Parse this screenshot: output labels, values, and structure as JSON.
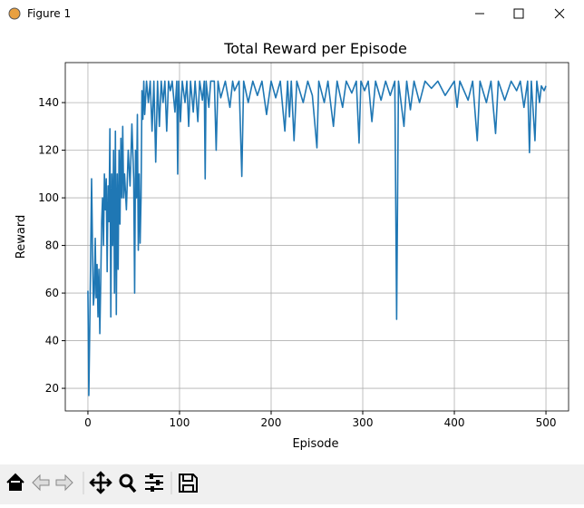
{
  "window": {
    "title": "Figure 1"
  },
  "chart_data": {
    "type": "line",
    "title": "Total Reward per Episode",
    "x_label": "Episode",
    "y_label": "Reward",
    "color": "#1f77b4",
    "grid": true,
    "xlim": [
      -24.7,
      524.7
    ],
    "ylim": [
      10.5,
      156.8
    ],
    "xticks": [
      0,
      100,
      200,
      300,
      400,
      500
    ],
    "yticks": [
      20,
      40,
      60,
      80,
      100,
      120,
      140
    ],
    "x": [
      0,
      1,
      2,
      3,
      4,
      5,
      6,
      7,
      8,
      9,
      10,
      11,
      12,
      13,
      14,
      15,
      16,
      17,
      18,
      19,
      20,
      21,
      22,
      23,
      24,
      25,
      26,
      27,
      28,
      29,
      30,
      31,
      32,
      33,
      34,
      35,
      36,
      37,
      38,
      39,
      40,
      42,
      44,
      46,
      48,
      50,
      51,
      52,
      53,
      54,
      55,
      56,
      57,
      58,
      59,
      60,
      61,
      62,
      64,
      66,
      68,
      70,
      72,
      74,
      76,
      78,
      80,
      82,
      84,
      86,
      88,
      90,
      92,
      95,
      97,
      98,
      99,
      101,
      103,
      106,
      108,
      110,
      112,
      115,
      117,
      120,
      122,
      125,
      127,
      128,
      129,
      132,
      134,
      138,
      140,
      142,
      145,
      150,
      155,
      158,
      160,
      165,
      168,
      170,
      175,
      180,
      185,
      190,
      195,
      200,
      205,
      210,
      215,
      218,
      220,
      222,
      225,
      228,
      235,
      240,
      245,
      250,
      252,
      258,
      262,
      268,
      272,
      278,
      282,
      288,
      293,
      296,
      298,
      302,
      306,
      310,
      314,
      320,
      325,
      330,
      335,
      337,
      339,
      345,
      348,
      352,
      356,
      362,
      368,
      375,
      382,
      390,
      400,
      403,
      406,
      415,
      420,
      425,
      428,
      435,
      440,
      445,
      448,
      455,
      462,
      468,
      472,
      476,
      480,
      482,
      484,
      488,
      490,
      493,
      495,
      498,
      500
    ],
    "values": [
      61,
      17,
      45,
      75,
      108,
      80,
      55,
      60,
      83,
      58,
      72,
      50,
      70,
      43,
      65,
      90,
      100,
      80,
      110,
      95,
      108,
      69,
      105,
      90,
      129,
      50,
      110,
      80,
      120,
      60,
      128,
      51,
      110,
      70,
      120,
      89,
      125,
      100,
      130,
      100,
      110,
      95,
      120,
      105,
      131,
      108,
      60,
      120,
      100,
      135,
      78,
      110,
      81,
      100,
      145,
      133,
      149,
      135,
      149,
      140,
      149,
      128,
      149,
      115,
      149,
      130,
      149,
      140,
      149,
      128,
      149,
      145,
      149,
      136,
      149,
      110,
      149,
      132,
      149,
      140,
      149,
      130,
      149,
      136,
      149,
      132,
      149,
      141,
      149,
      108,
      149,
      138,
      149,
      149,
      120,
      149,
      142,
      149,
      138,
      149,
      145,
      149,
      109,
      149,
      140,
      149,
      143,
      149,
      135,
      149,
      142,
      149,
      128,
      149,
      134,
      149,
      124,
      149,
      140,
      149,
      143,
      121,
      149,
      140,
      149,
      130,
      149,
      138,
      149,
      144,
      149,
      123,
      149,
      145,
      149,
      132,
      149,
      141,
      149,
      143,
      149,
      49,
      149,
      130,
      149,
      137,
      149,
      140,
      149,
      146,
      149,
      143,
      149,
      138,
      149,
      141,
      149,
      124,
      149,
      140,
      149,
      127,
      149,
      141,
      149,
      145,
      149,
      138,
      149,
      119,
      149,
      124,
      149,
      140,
      147,
      145,
      147
    ]
  }
}
